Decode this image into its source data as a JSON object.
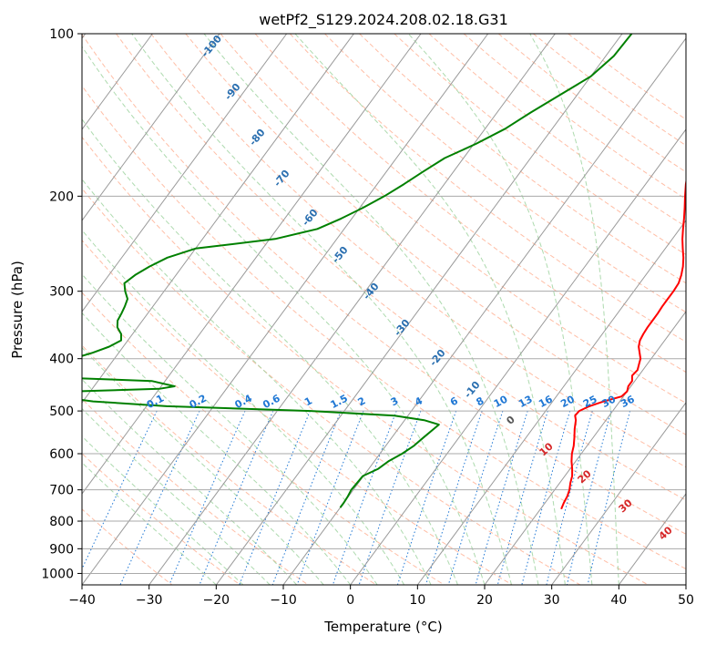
{
  "chart_data": {
    "type": "line",
    "title": "wetPf2_S129.2024.208.02.18.G31",
    "xlabel": "Temperature (°C)",
    "ylabel": "Pressure (hPa)",
    "xlim": [
      -40,
      50
    ],
    "ylim": [
      1050,
      100
    ],
    "y_scale": "log",
    "grid": true,
    "x_ticks": [
      -40,
      -30,
      -20,
      -10,
      0,
      10,
      20,
      30,
      40,
      50
    ],
    "y_ticks": [
      100,
      200,
      300,
      400,
      500,
      600,
      700,
      800,
      900,
      1000
    ],
    "skew_description": "skew-T log-p diagram",
    "series": [
      {
        "color": "#ff0000",
        "points": [
          [
            100,
            -4.0
          ],
          [
            110,
            -3.9
          ],
          [
            120,
            -3.3
          ],
          [
            130,
            -1.8
          ],
          [
            140,
            0.0
          ],
          [
            150,
            1.6
          ],
          [
            160,
            2.8
          ],
          [
            170,
            3.9
          ],
          [
            180,
            4.9
          ],
          [
            190,
            6.0
          ],
          [
            200,
            7.2
          ],
          [
            210,
            8.4
          ],
          [
            220,
            9.5
          ],
          [
            230,
            10.5
          ],
          [
            240,
            11.5
          ],
          [
            250,
            12.6
          ],
          [
            260,
            13.7
          ],
          [
            270,
            14.6
          ],
          [
            280,
            15.3
          ],
          [
            290,
            15.8
          ],
          [
            300,
            15.9
          ],
          [
            310,
            15.9
          ],
          [
            320,
            15.9
          ],
          [
            330,
            16.0
          ],
          [
            340,
            16.0
          ],
          [
            350,
            16.0
          ],
          [
            360,
            16.1
          ],
          [
            370,
            16.3
          ],
          [
            380,
            16.8
          ],
          [
            390,
            17.6
          ],
          [
            400,
            18.4
          ],
          [
            410,
            18.8
          ],
          [
            420,
            19.2
          ],
          [
            430,
            19.0
          ],
          [
            440,
            19.6
          ],
          [
            450,
            19.6
          ],
          [
            460,
            20.0
          ],
          [
            470,
            19.7
          ],
          [
            480,
            17.6
          ],
          [
            490,
            16.0
          ],
          [
            500,
            15.0
          ],
          [
            510,
            14.9
          ],
          [
            520,
            15.5
          ],
          [
            540,
            16.3
          ],
          [
            560,
            17.2
          ],
          [
            580,
            18.0
          ],
          [
            600,
            18.6
          ],
          [
            620,
            19.4
          ],
          [
            640,
            20.3
          ],
          [
            660,
            21.1
          ],
          [
            680,
            21.6
          ],
          [
            700,
            22.2
          ],
          [
            720,
            22.6
          ],
          [
            740,
            22.8
          ],
          [
            760,
            23.1
          ]
        ]
      },
      {
        "color": "#008000",
        "points": [
          [
            100,
            -18.6
          ],
          [
            110,
            -18.8
          ],
          [
            120,
            -20.0
          ],
          [
            130,
            -22.6
          ],
          [
            140,
            -25.0
          ],
          [
            150,
            -27.0
          ],
          [
            160,
            -29.7
          ],
          [
            170,
            -32.8
          ],
          [
            180,
            -34.5
          ],
          [
            190,
            -36.0
          ],
          [
            200,
            -37.6
          ],
          [
            210,
            -39.5
          ],
          [
            220,
            -41.6
          ],
          [
            230,
            -44.0
          ],
          [
            240,
            -49.2
          ],
          [
            250,
            -60.0
          ],
          [
            260,
            -63.2
          ],
          [
            270,
            -64.9
          ],
          [
            280,
            -66.1
          ],
          [
            290,
            -66.8
          ],
          [
            300,
            -65.8
          ],
          [
            310,
            -64.6
          ],
          [
            320,
            -64.2
          ],
          [
            330,
            -63.9
          ],
          [
            340,
            -63.7
          ],
          [
            350,
            -63.0
          ],
          [
            360,
            -61.7
          ],
          [
            370,
            -61.0
          ],
          [
            380,
            -62.1
          ],
          [
            390,
            -63.9
          ],
          [
            400,
            -66.2
          ],
          [
            410,
            -67.8
          ],
          [
            420,
            -69.3
          ],
          [
            430,
            -70.8
          ],
          [
            435,
            -63.0
          ],
          [
            440,
            -52.0
          ],
          [
            450,
            -48.0
          ],
          [
            455,
            -50.0
          ],
          [
            460,
            -62.0
          ],
          [
            465,
            -66.7
          ],
          [
            470,
            -64.5
          ],
          [
            480,
            -58.5
          ],
          [
            490,
            -47.0
          ],
          [
            500,
            -25.0
          ],
          [
            510,
            -12.0
          ],
          [
            520,
            -7.1
          ],
          [
            530,
            -4.4
          ],
          [
            540,
            -4.7
          ],
          [
            560,
            -5.3
          ],
          [
            580,
            -5.8
          ],
          [
            600,
            -6.7
          ],
          [
            620,
            -7.9
          ],
          [
            640,
            -8.6
          ],
          [
            660,
            -10.1
          ],
          [
            680,
            -10.2
          ],
          [
            700,
            -10.3
          ],
          [
            720,
            -10.1
          ],
          [
            740,
            -10.0
          ],
          [
            755,
            -10.0
          ]
        ]
      }
    ],
    "mixing_ratio_labels": [
      "0.1",
      "0.2",
      "0.4",
      "0.6",
      "1",
      "1.5",
      "2",
      "3",
      "4",
      "6",
      "8",
      "10",
      "13",
      "16",
      "20",
      "25",
      "30",
      "36"
    ],
    "mixing_ratio_values": [
      0.1,
      0.2,
      0.4,
      0.6,
      1,
      1.5,
      2,
      3,
      4,
      6,
      8,
      10,
      13,
      16,
      20,
      25,
      30,
      36
    ],
    "moist_adiabat_labels": [
      "-100",
      "-90",
      "-80",
      "-70",
      "-60",
      "-50",
      "-40",
      "-30",
      "-20",
      "-10"
    ],
    "moist_adiabat_values": [
      -100,
      -90,
      -80,
      -70,
      -60,
      -50,
      -40,
      -30,
      -20,
      -10
    ],
    "dry_adiabat_labels": [
      "0",
      "10",
      "20",
      "30",
      "40"
    ],
    "dry_adiabat_values": [
      0,
      10,
      20,
      30,
      40
    ]
  },
  "colors": {
    "temperature": "#ff0000",
    "dewpoint": "#008000",
    "mixing_ratio": "#1f77d4",
    "moist_adiabat_label": "#2a6fb0",
    "dry_adiabat_label": "#d62728",
    "isotherm": "#9a9a9a",
    "isobar": "#aaaaaa"
  }
}
